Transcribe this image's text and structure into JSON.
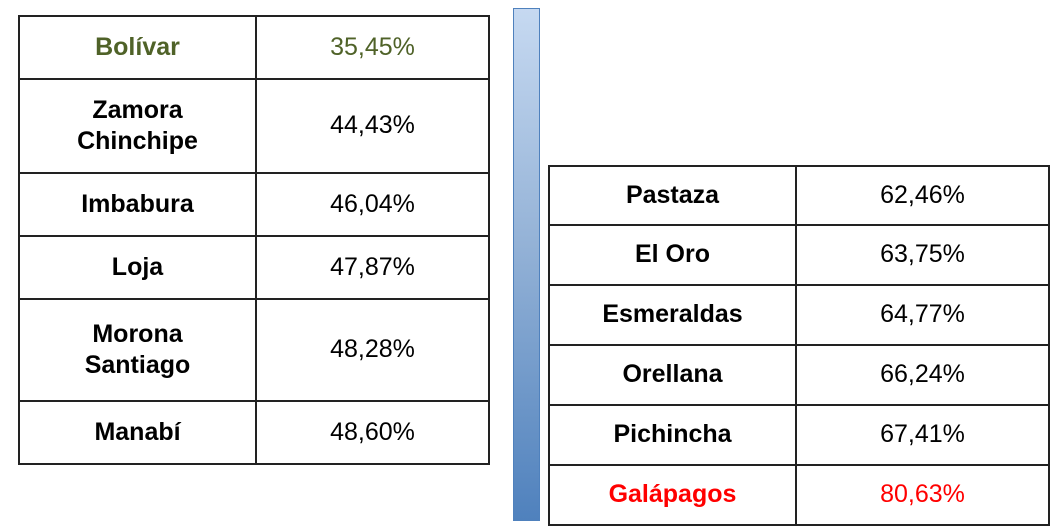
{
  "left": {
    "rows": [
      [
        "Bolívar",
        "35,45%"
      ],
      [
        "Zamora Chinchipe",
        "44,43%"
      ],
      [
        "Imbabura",
        "46,04%"
      ],
      [
        "Loja",
        "47,87%"
      ],
      [
        "Morona Santiago",
        "48,28%"
      ],
      [
        "Manabí",
        "48,60%"
      ]
    ]
  },
  "right": {
    "rows": [
      [
        "Pastaza",
        "62,46%"
      ],
      [
        "El Oro",
        "63,75%"
      ],
      [
        "Esmeraldas",
        "64,77%"
      ],
      [
        "Orellana",
        "66,24%"
      ],
      [
        "Pichincha",
        "67,41%"
      ],
      [
        "Galápagos",
        "80,63%"
      ]
    ]
  }
}
